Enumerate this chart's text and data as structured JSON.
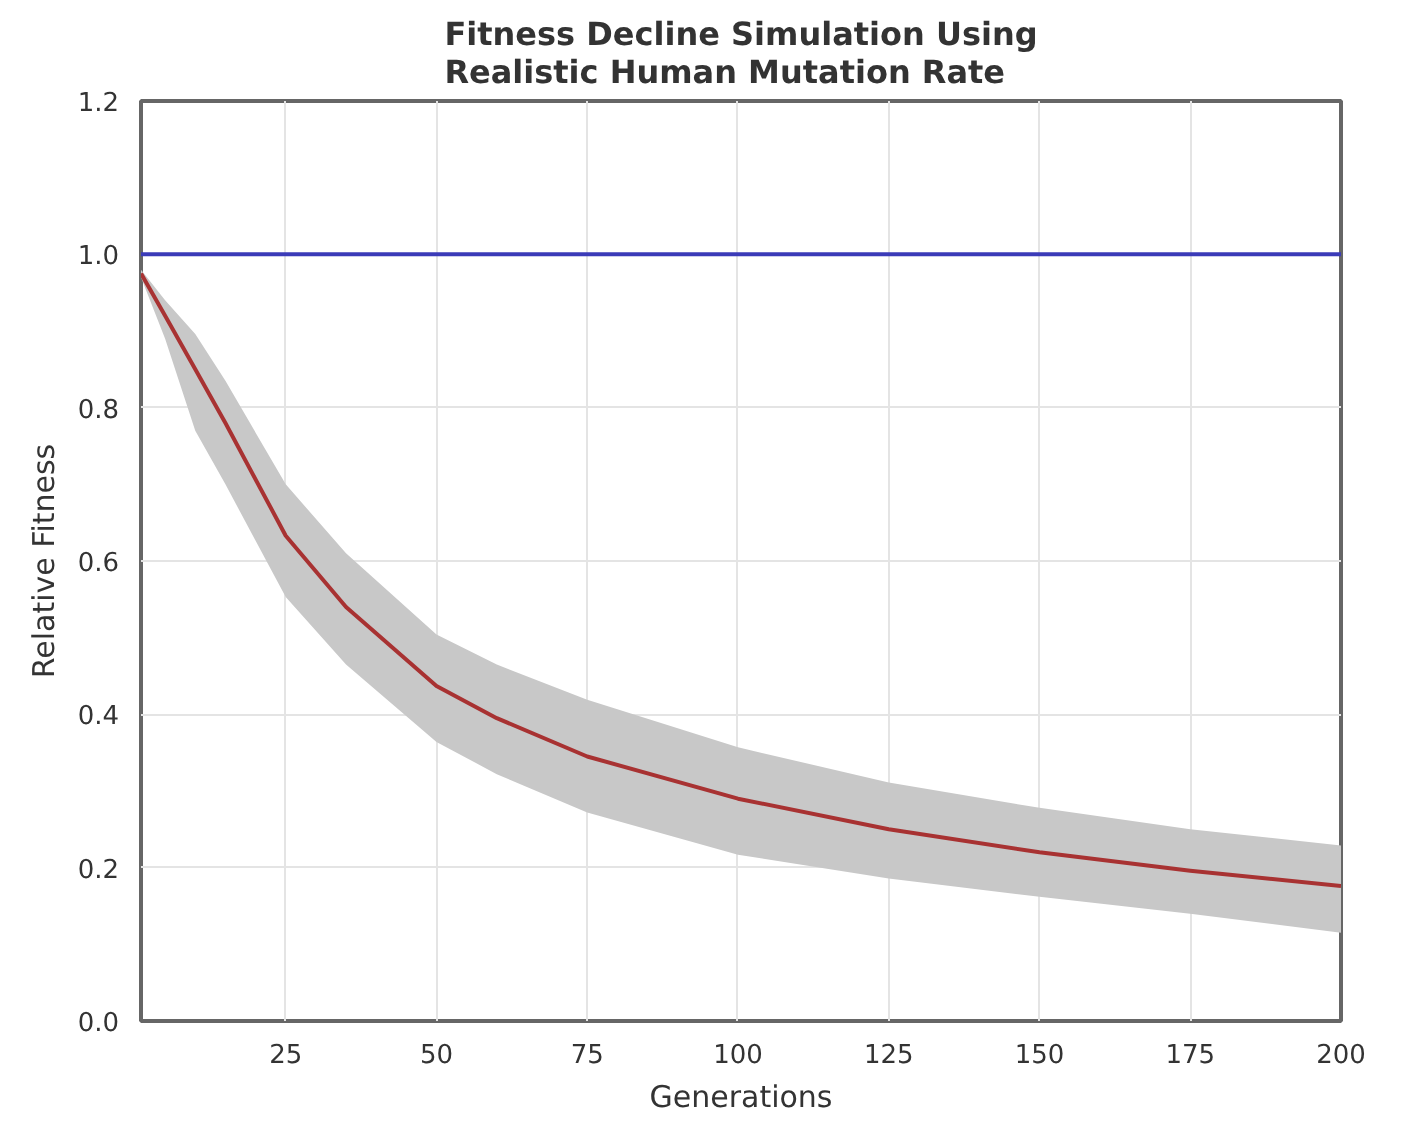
{
  "chart_data": {
    "type": "line",
    "title": "Fitness Decline Simulation Using\nRealistic Human Mutation Rate",
    "xlabel": "Generations",
    "ylabel": "Relative Fitness",
    "xlim": [
      1,
      200
    ],
    "ylim": [
      0,
      1.2
    ],
    "xticks": [
      25,
      50,
      75,
      100,
      125,
      150,
      175,
      200
    ],
    "yticks": [
      {
        "value": 0,
        "label": "0.0"
      },
      {
        "value": 0.2,
        "label": "0.2"
      },
      {
        "value": 0.4,
        "label": "0.4"
      },
      {
        "value": 0.6,
        "label": "0.6"
      },
      {
        "value": 0.8,
        "label": "0.8"
      },
      {
        "value": 1.0,
        "label": "1.0"
      },
      {
        "value": 1.2,
        "label": "1.2"
      }
    ],
    "grid": true,
    "line_style": "solid",
    "marker": "none",
    "ref_lines": [
      {
        "axis": "y",
        "value": 1.0,
        "color": "#3b3bb8"
      }
    ],
    "series": [
      {
        "color": "#a83232",
        "x": [
          1,
          5,
          10,
          15,
          25,
          35,
          50,
          60,
          75,
          100,
          125,
          150,
          175,
          200
        ],
        "values": [
          0.975,
          0.92,
          0.85,
          0.78,
          0.633,
          0.54,
          0.437,
          0.395,
          0.345,
          0.29,
          0.25,
          0.22,
          0.196,
          0.176
        ],
        "upper": [
          0.98,
          0.94,
          0.896,
          0.835,
          0.7,
          0.61,
          0.504,
          0.465,
          0.419,
          0.357,
          0.311,
          0.278,
          0.25,
          0.229
        ],
        "lower": [
          0.97,
          0.89,
          0.77,
          0.7,
          0.553,
          0.465,
          0.364,
          0.322,
          0.272,
          0.217,
          0.186,
          0.162,
          0.14,
          0.115
        ]
      }
    ]
  }
}
